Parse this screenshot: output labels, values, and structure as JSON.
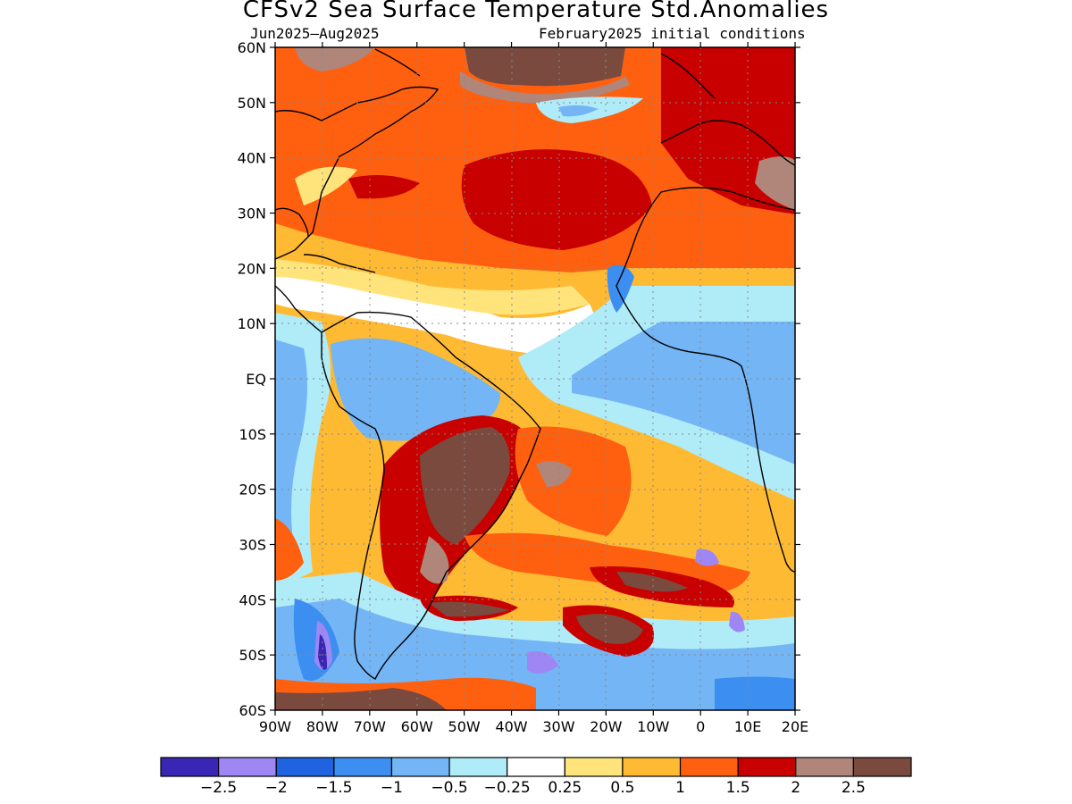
{
  "title": "CFSv2 Sea Surface Temperature Std.Anomalies",
  "subtitle_left": "Jun2025–Aug2025",
  "subtitle_right": "February2025 initial conditions",
  "lat_labels": [
    "60N",
    "50N",
    "40N",
    "30N",
    "20N",
    "10N",
    "EQ",
    "10S",
    "20S",
    "30S",
    "40S",
    "50S",
    "60S"
  ],
  "lon_labels": [
    "90W",
    "80W",
    "70W",
    "60W",
    "50W",
    "40W",
    "30W",
    "20W",
    "10W",
    "0",
    "10E",
    "20E"
  ],
  "colorbar": {
    "colors": [
      "#3a26b4",
      "#9e87f5",
      "#1f63e0",
      "#3c8ff0",
      "#74b5f5",
      "#b0ecf8",
      "#ffffff",
      "#ffe47c",
      "#ffba34",
      "#ff6010",
      "#c80000",
      "#b0857a",
      "#7a4a3e"
    ],
    "labels": [
      "−2.5",
      "−2",
      "−1.5",
      "−1",
      "−0.5",
      "−0.25",
      "0.25",
      "0.5",
      "1",
      "1.5",
      "2",
      "2.5"
    ]
  },
  "map": {
    "colors": {
      "warm_base": "#ffba34",
      "warm_mid": "#ff6010",
      "warm_high": "#c80000",
      "very_high": "#b0857a",
      "extreme": "#7a4a3e",
      "neutral": "#ffffff",
      "cool_slight": "#b0ecf8",
      "cool": "#74b5f5",
      "cool_more": "#3c8ff0",
      "cold": "#1f63e0",
      "colder": "#9e87f5",
      "coldest": "#3a26b4",
      "yellow": "#ffe47c"
    }
  }
}
